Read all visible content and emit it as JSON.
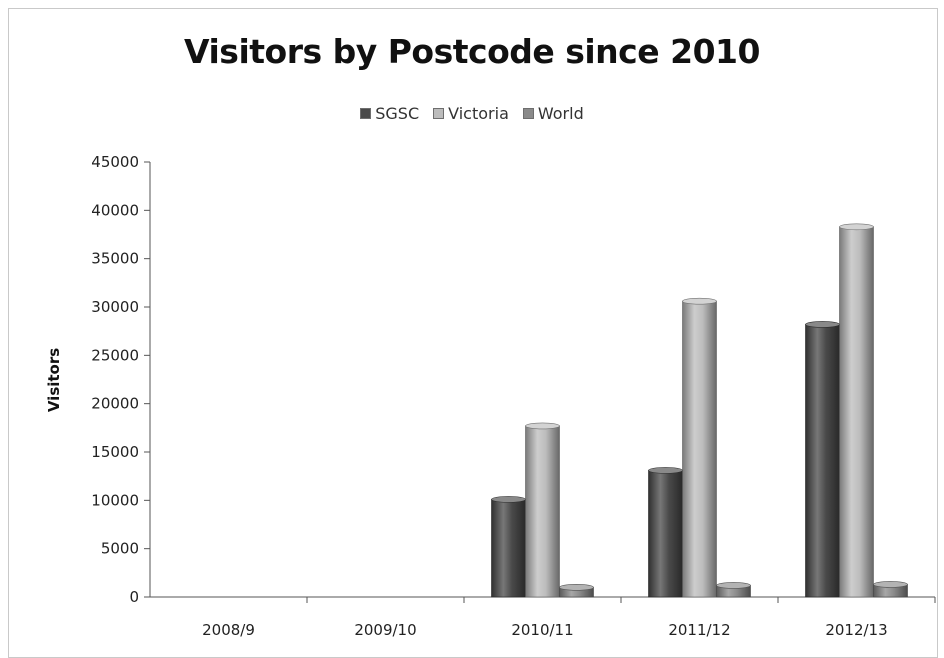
{
  "chart_data": {
    "type": "bar",
    "title": "Visitors by Postcode since 2010",
    "xlabel": "",
    "ylabel": "Visitors",
    "ylim": [
      0,
      45000
    ],
    "yticks": [
      0,
      5000,
      10000,
      15000,
      20000,
      25000,
      30000,
      35000,
      40000,
      45000
    ],
    "categories": [
      "2008/9",
      "2009/10",
      "2010/11",
      "2011/12",
      "2012/13"
    ],
    "legend_position": "top-center",
    "grid": false,
    "series": [
      {
        "name": "SGSC",
        "color": "#4a4a4a",
        "values": [
          0,
          0,
          10100,
          13100,
          28200
        ]
      },
      {
        "name": "Victoria",
        "color": "#bcbcbc",
        "values": [
          0,
          0,
          17700,
          30600,
          38300
        ]
      },
      {
        "name": "World",
        "color": "#8a8a8a",
        "values": [
          0,
          0,
          1000,
          1200,
          1300
        ]
      }
    ]
  }
}
